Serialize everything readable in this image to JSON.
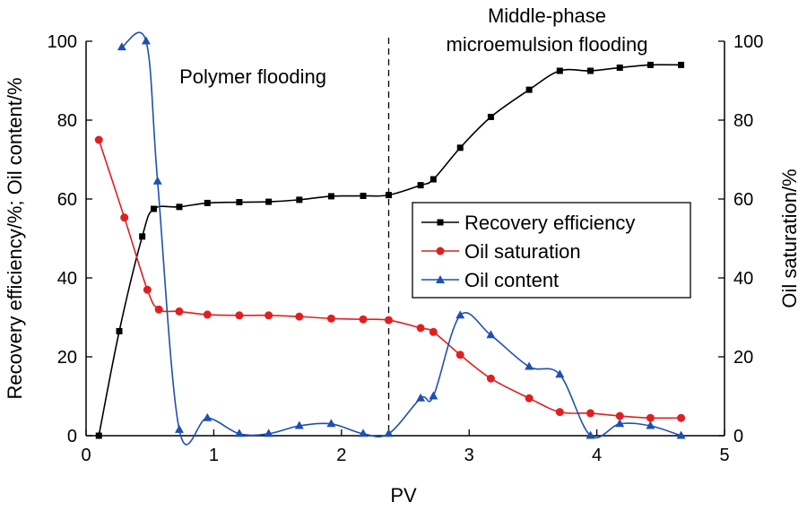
{
  "chart_data": {
    "type": "line",
    "xlabel": "PV",
    "ylabel_left": "Recovery efficiency/%; Oil content/%",
    "ylabel_right": "Oil saturation/%",
    "xlim": [
      0,
      5
    ],
    "ylim_left": [
      0,
      100
    ],
    "ylim_right": [
      0,
      100
    ],
    "x_ticks": [
      0,
      1,
      2,
      3,
      4,
      5
    ],
    "y_ticks": [
      0,
      20,
      40,
      60,
      80,
      100
    ],
    "grid": false,
    "legend_position": "center-right",
    "divider_x": 2.37,
    "annotations": [
      {
        "text": "Polymer flooding"
      },
      {
        "text_lines": [
          "Middle-phase",
          "microemulsion flooding"
        ]
      }
    ],
    "series": [
      {
        "name": "Recovery efficiency",
        "axis": "left",
        "marker": "square",
        "color": "#000000",
        "x": [
          0.1,
          0.26,
          0.44,
          0.53,
          0.73,
          0.95,
          1.2,
          1.43,
          1.67,
          1.92,
          2.17,
          2.37,
          2.62,
          2.72,
          2.93,
          3.17,
          3.47,
          3.71,
          3.95,
          4.18,
          4.42,
          4.66
        ],
        "y": [
          0,
          26.5,
          50.5,
          57.5,
          58,
          59,
          59.2,
          59.3,
          59.8,
          60.7,
          60.8,
          61,
          63.5,
          65,
          73,
          80.8,
          87.7,
          92.5,
          92.5,
          93.3,
          94,
          94
        ]
      },
      {
        "name": "Oil saturation",
        "axis": "right",
        "marker": "circle",
        "color": "#e02020",
        "x": [
          0.1,
          0.3,
          0.48,
          0.57,
          0.73,
          0.95,
          1.2,
          1.43,
          1.67,
          1.92,
          2.17,
          2.37,
          2.62,
          2.72,
          2.93,
          3.17,
          3.47,
          3.71,
          3.95,
          4.18,
          4.42,
          4.66
        ],
        "y": [
          75,
          55.3,
          37,
          32,
          31.5,
          30.7,
          30.5,
          30.5,
          30.2,
          29.7,
          29.5,
          29.3,
          27.3,
          26.3,
          20.5,
          14.5,
          9.5,
          6,
          5.7,
          5,
          4.5,
          4.5
        ]
      },
      {
        "name": "Oil content",
        "axis": "left",
        "marker": "triangle",
        "color": "#1f4fb0",
        "x": [
          0.28,
          0.47,
          0.56,
          0.73,
          0.95,
          1.2,
          1.43,
          1.67,
          1.92,
          2.17,
          2.37,
          2.62,
          2.72,
          2.93,
          3.17,
          3.47,
          3.71,
          3.95,
          4.18,
          4.42,
          4.66
        ],
        "y": [
          98.5,
          100,
          64.5,
          1.5,
          4.5,
          0.5,
          0.5,
          2.5,
          3,
          0.5,
          0.5,
          9.5,
          10,
          30.5,
          25.5,
          17.5,
          15.5,
          0,
          3,
          2.5,
          0
        ]
      }
    ]
  }
}
